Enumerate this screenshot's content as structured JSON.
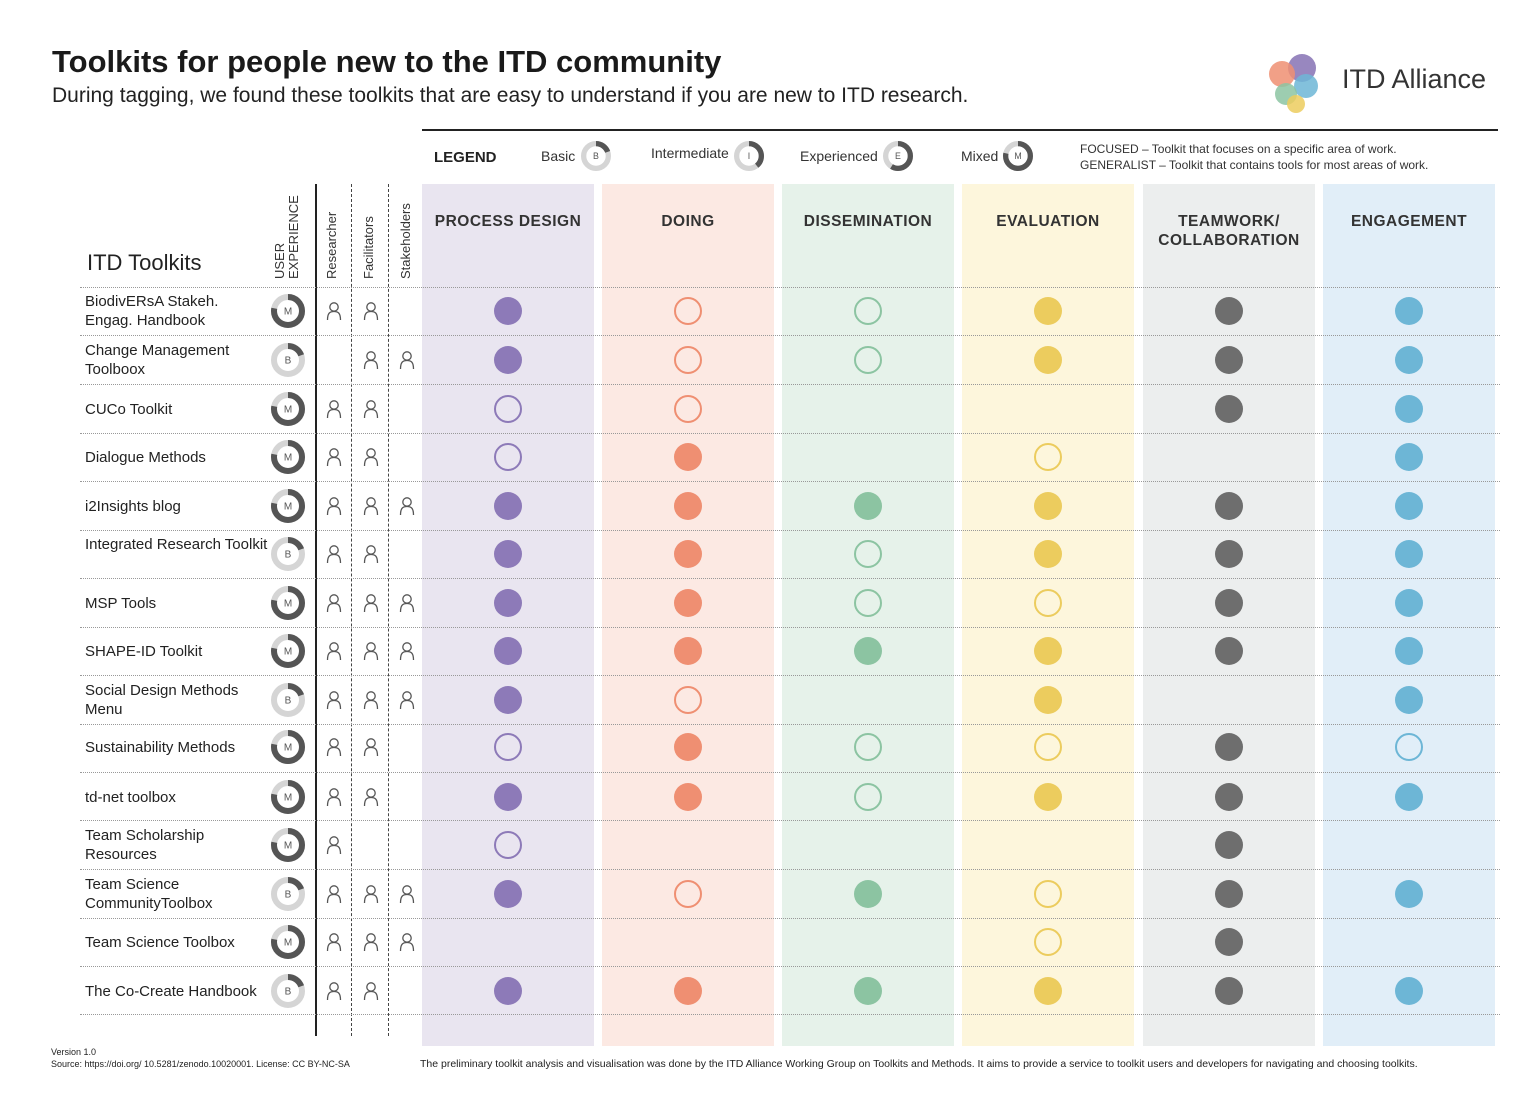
{
  "header": {
    "title": "Toolkits for people new to the ITD community",
    "subtitle": "During tagging, we found these toolkits that are easy to understand if you are new to ITD research.",
    "logo_text": "ITD Alliance"
  },
  "legend": {
    "title": "LEGEND",
    "items": [
      {
        "label": "Basic",
        "letter": "B",
        "level": 1
      },
      {
        "label": "Intermediate",
        "letter": "I",
        "level": 2
      },
      {
        "label": "Experienced",
        "letter": "E",
        "level": 3
      },
      {
        "label": "Mixed",
        "letter": "M",
        "level": 4
      }
    ],
    "notes": [
      "FOCUSED – Toolkit that focuses on a specific area of work.",
      "GENERALIST – Toolkit that contains tools for most areas of work."
    ]
  },
  "table": {
    "heading": "ITD Toolkits",
    "user_experience_header": "USER EXPERIENCE",
    "audience_headers": [
      "Researcher",
      "Facilitators",
      "Stakeholders"
    ],
    "columns": [
      {
        "key": "process",
        "label": "PROCESS DESIGN",
        "color": "#8d7ab8",
        "bg": "#e9e5f0"
      },
      {
        "key": "doing",
        "label": "DOING",
        "color": "#ef8f72",
        "bg": "#fce9e3"
      },
      {
        "key": "dissemination",
        "label": "DISSEMINATION",
        "color": "#8cc4a2",
        "bg": "#e6f2ea"
      },
      {
        "key": "evaluation",
        "label": "EVALUATION",
        "color": "#eccc5e",
        "bg": "#fdf6dc"
      },
      {
        "key": "teamwork",
        "label": "TEAMWORK/ COLLABORATION",
        "color": "#6e6e6e",
        "bg": "#eceeee"
      },
      {
        "key": "engagement",
        "label": "ENGAGEMENT",
        "color": "#6db6d6",
        "bg": "#e1eef8"
      }
    ],
    "rows": [
      {
        "name": "BiodivERsA Stakeh. Engag. Handbook",
        "ux": "M",
        "audience": [
          1,
          1,
          0
        ],
        "cells": [
          "filled",
          "outline",
          "outline",
          "filled",
          "filled",
          "filled"
        ]
      },
      {
        "name": "Change Management Toolboox",
        "ux": "B",
        "audience": [
          0,
          1,
          1
        ],
        "cells": [
          "filled",
          "outline",
          "outline",
          "filled",
          "filled",
          "filled"
        ]
      },
      {
        "name": "CUCo Toolkit",
        "ux": "M",
        "audience": [
          1,
          1,
          0
        ],
        "cells": [
          "outline",
          "outline",
          "none",
          "none",
          "filled",
          "filled"
        ]
      },
      {
        "name": "Dialogue Methods",
        "ux": "M",
        "audience": [
          1,
          1,
          0
        ],
        "cells": [
          "outline",
          "filled",
          "none",
          "outline",
          "none",
          "filled"
        ]
      },
      {
        "name": "i2Insights blog",
        "ux": "M",
        "audience": [
          1,
          1,
          1
        ],
        "cells": [
          "filled",
          "filled",
          "filled",
          "filled",
          "filled",
          "filled"
        ]
      },
      {
        "name": "Integrated Research Toolkit",
        "ux": "B",
        "audience": [
          1,
          1,
          0
        ],
        "cells": [
          "filled",
          "filled",
          "outline",
          "filled",
          "filled",
          "filled"
        ]
      },
      {
        "name": "MSP Tools",
        "ux": "M",
        "audience": [
          1,
          1,
          1
        ],
        "cells": [
          "filled",
          "filled",
          "outline",
          "outline",
          "filled",
          "filled"
        ]
      },
      {
        "name": "SHAPE-ID Toolkit",
        "ux": "M",
        "audience": [
          1,
          1,
          1
        ],
        "cells": [
          "filled",
          "filled",
          "filled",
          "filled",
          "filled",
          "filled"
        ]
      },
      {
        "name": "Social Design Methods Menu",
        "ux": "B",
        "audience": [
          1,
          1,
          1
        ],
        "cells": [
          "filled",
          "outline",
          "none",
          "filled",
          "none",
          "filled"
        ]
      },
      {
        "name": "Sustainability Methods",
        "ux": "M",
        "audience": [
          1,
          1,
          0
        ],
        "cells": [
          "outline",
          "filled",
          "outline",
          "outline",
          "filled",
          "outline"
        ]
      },
      {
        "name": "td-net toolbox",
        "ux": "M",
        "audience": [
          1,
          1,
          0
        ],
        "cells": [
          "filled",
          "filled",
          "outline",
          "filled",
          "filled",
          "filled"
        ]
      },
      {
        "name": "Team Scholarship Resources",
        "ux": "M",
        "audience": [
          1,
          0,
          0
        ],
        "cells": [
          "outline",
          "none",
          "none",
          "none",
          "filled",
          "none"
        ]
      },
      {
        "name": "Team Science CommunityToolbox",
        "ux": "B",
        "audience": [
          1,
          1,
          1
        ],
        "cells": [
          "filled",
          "outline",
          "filled",
          "outline",
          "filled",
          "filled"
        ]
      },
      {
        "name": "Team Science Toolbox",
        "ux": "M",
        "audience": [
          1,
          1,
          1
        ],
        "cells": [
          "none",
          "none",
          "none",
          "outline",
          "filled",
          "none"
        ]
      },
      {
        "name": "The Co-Create Handbook",
        "ux": "B",
        "audience": [
          1,
          1,
          0
        ],
        "cells": [
          "filled",
          "filled",
          "filled",
          "filled",
          "filled",
          "filled"
        ]
      }
    ]
  },
  "footer": {
    "version": "Version 1.0",
    "source": "Source: https://doi.org/ 10.5281/zenodo.10020001. License: CC BY-NC-SA",
    "note": "The preliminary toolkit analysis and visualisation was done by the ITD Alliance Working Group on Toolkits and Methods. It aims to provide a service to toolkit users and developers for navigating and choosing toolkits."
  }
}
